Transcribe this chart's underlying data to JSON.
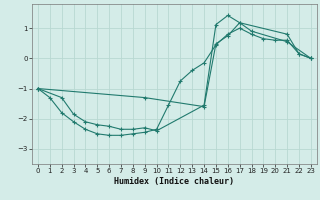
{
  "xlabel": "Humidex (Indice chaleur)",
  "background_color": "#d4ece8",
  "grid_color": "#b8d8d2",
  "line_color": "#217a6e",
  "xlim": [
    -0.5,
    23.5
  ],
  "ylim": [
    -3.5,
    1.8
  ],
  "xticks": [
    0,
    1,
    2,
    3,
    4,
    5,
    6,
    7,
    8,
    9,
    10,
    11,
    12,
    13,
    14,
    15,
    16,
    17,
    18,
    19,
    20,
    21,
    22,
    23
  ],
  "yticks": [
    -3,
    -2,
    -1,
    0,
    1
  ],
  "line1_x": [
    0,
    1,
    2,
    3,
    4,
    5,
    6,
    7,
    8,
    9,
    10,
    11,
    12,
    13,
    14,
    15,
    16,
    17,
    18,
    19,
    20,
    21,
    22,
    23
  ],
  "line1_y": [
    -1.0,
    -1.3,
    -1.8,
    -2.1,
    -2.35,
    -2.5,
    -2.55,
    -2.55,
    -2.5,
    -2.45,
    -2.35,
    -1.55,
    -0.75,
    -0.4,
    -0.15,
    0.45,
    0.8,
    1.0,
    0.8,
    0.65,
    0.6,
    0.6,
    0.15,
    0.0
  ],
  "line2_x": [
    0,
    2,
    3,
    4,
    5,
    6,
    7,
    8,
    9,
    10,
    14,
    15,
    16,
    17,
    21,
    22,
    23
  ],
  "line2_y": [
    -1.0,
    -1.3,
    -1.85,
    -2.1,
    -2.2,
    -2.25,
    -2.35,
    -2.35,
    -2.3,
    -2.4,
    -1.55,
    1.12,
    1.42,
    1.18,
    0.8,
    0.15,
    0.0
  ],
  "line3_x": [
    0,
    9,
    14,
    15,
    16,
    17,
    18,
    21,
    23
  ],
  "line3_y": [
    -1.0,
    -1.3,
    -1.6,
    0.48,
    0.75,
    1.18,
    0.9,
    0.55,
    0.0
  ]
}
